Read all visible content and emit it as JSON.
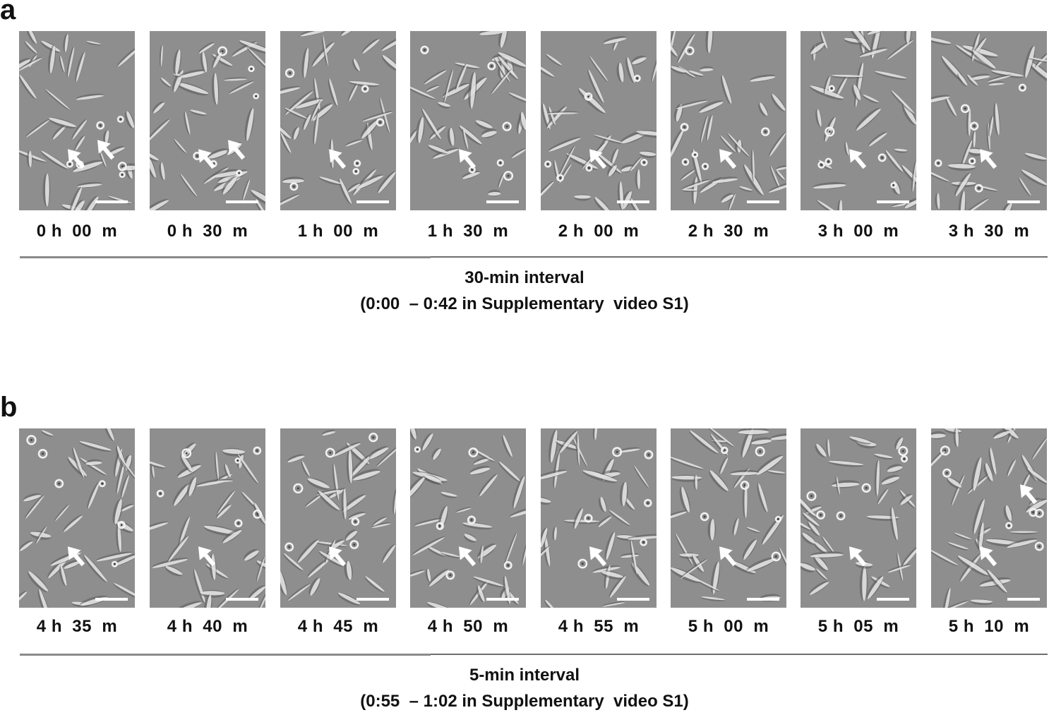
{
  "panels": [
    {
      "letter": "a",
      "timestamps": [
        "0 h  00  m",
        "0 h  30  m",
        "1 h  00  m",
        "1 h  30  m",
        "2 h  00  m",
        "2 h  30  m",
        "3 h  00  m",
        "3 h  30  m"
      ],
      "interval_label": "30-min interval",
      "video_range": "(0:00  – 0:42 in Supplementary  video S1)"
    },
    {
      "letter": "b",
      "timestamps": [
        "4 h  35  m",
        "4 h  40  m",
        "4 h  45  m",
        "4 h  50  m",
        "4 h  55  m",
        "5 h  00  m",
        "5 h  05  m",
        "5 h  10  m"
      ],
      "interval_label": "5-min interval",
      "video_range": "(0:55  – 1:02 in Supplementary  video S1)"
    }
  ],
  "colors": {
    "background": "#ffffff",
    "frame_gray": "#8e8e8e",
    "cell_highlight": "#f2f2f2",
    "cell_shadow": "#5a5a5a",
    "arrow": "#ffffff",
    "text": "#111111"
  }
}
